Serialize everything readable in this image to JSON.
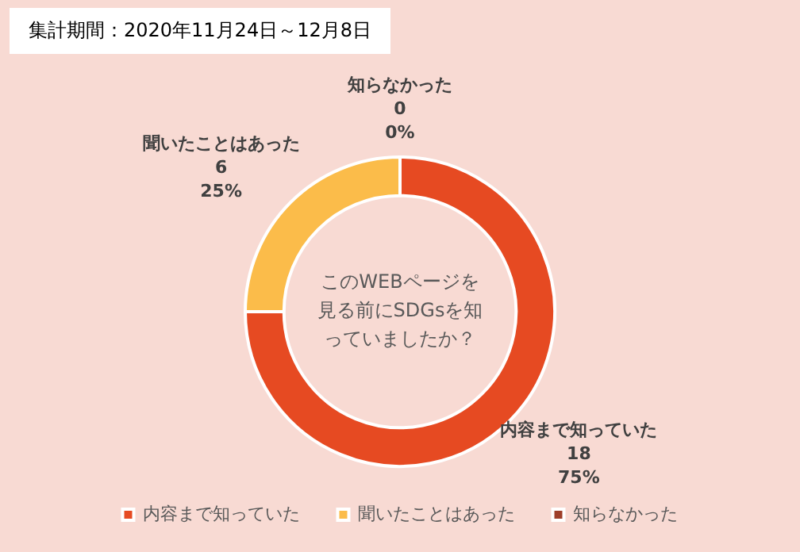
{
  "chart_data": {
    "type": "donut",
    "title": "集計期間：2020年11月24日～12月8日",
    "categories": [
      "内容まで知っていた",
      "聞いたことはあった",
      "知らなかった"
    ],
    "values": [
      18,
      6,
      0
    ],
    "value_labels": [
      "18\n75%",
      "6\n25%",
      "0\n0%"
    ],
    "colors": [
      "#e64a22",
      "#fbbc4a",
      "#9e3f2a"
    ],
    "legend": "bottom",
    "annotations": [
      "このWEBページを見る前にSDGsを知っていましたか？"
    ]
  }
}
